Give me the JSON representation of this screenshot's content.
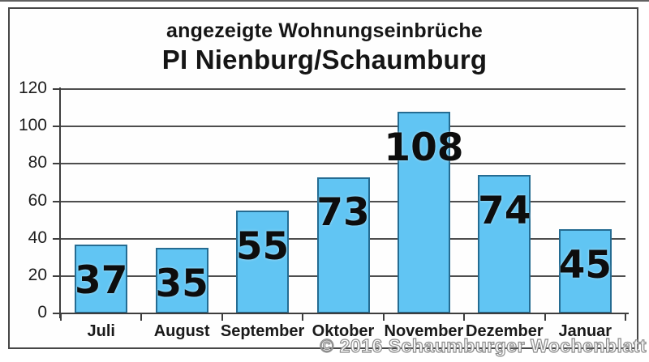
{
  "title": {
    "line1": "angezeigte Wohnungseinbrüche",
    "line2": "PI Nienburg/Schaumburg"
  },
  "watermark": "© 2016 Schaumburger Wochenblatt",
  "chart_data": {
    "type": "bar",
    "categories": [
      "Juli",
      "August",
      "September",
      "Oktober",
      "November",
      "Dezember",
      "Januar"
    ],
    "values": [
      37,
      35,
      55,
      73,
      108,
      74,
      45
    ],
    "value_labels": [
      "37",
      "35",
      "55",
      "73",
      "108",
      "74",
      "45"
    ],
    "title": "angezeigte Wohnungseinbrüche PI Nienburg/Schaumburg",
    "xlabel": "",
    "ylabel": "",
    "ylim": [
      0,
      120
    ],
    "yticks": [
      0,
      20,
      40,
      60,
      80,
      100,
      120
    ],
    "grid": true,
    "legend": "none",
    "bar_color": "#61c5f3",
    "bar_border_color": "#256c92",
    "value_label_color": "#0d0d0d"
  }
}
